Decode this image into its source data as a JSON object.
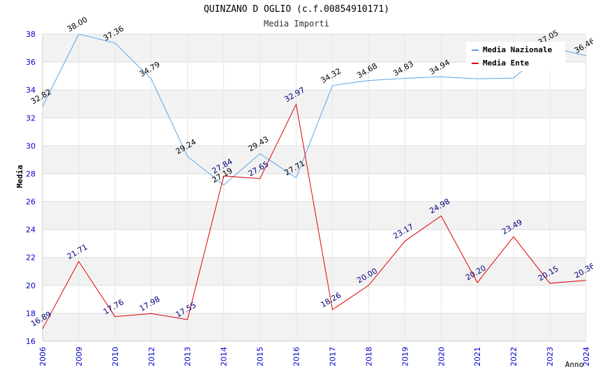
{
  "chart_data": {
    "type": "line",
    "title": "QUINZANO D OGLIO (c.f.00854910171)",
    "subtitle": "Media Importi",
    "xlabel": "Anno",
    "ylabel": "Media",
    "categories": [
      "2006",
      "2009",
      "2010",
      "2012",
      "2013",
      "2014",
      "2015",
      "2016",
      "2017",
      "2018",
      "2019",
      "2020",
      "2021",
      "2022",
      "2023",
      "2024"
    ],
    "ylim": [
      16,
      38
    ],
    "yticks": [
      16,
      18,
      20,
      22,
      24,
      26,
      28,
      30,
      32,
      34,
      36,
      38
    ],
    "grid": true,
    "legend_position": "top-right",
    "series": [
      {
        "name": "Media Nazionale",
        "color": "#5DA5E8",
        "label_color": "#000000",
        "values": [
          32.82,
          38.0,
          37.36,
          34.79,
          29.24,
          27.19,
          29.43,
          27.71,
          34.32,
          34.68,
          34.83,
          34.94,
          34.8,
          34.85,
          37.05,
          36.46
        ],
        "labels": [
          "32.82",
          "38.00",
          "37.36",
          "34.79",
          "29.24",
          "27.19",
          "29.43",
          "27.71",
          "34.32",
          "34.68",
          "34.83",
          "34.94",
          "",
          "",
          "37.05",
          "36.46"
        ]
      },
      {
        "name": "Media Ente",
        "color": "#E00000",
        "label_color": "#000080",
        "values": [
          16.89,
          21.71,
          17.76,
          17.98,
          17.55,
          27.84,
          27.65,
          32.97,
          18.26,
          20.0,
          23.17,
          24.98,
          20.2,
          23.49,
          20.15,
          20.36
        ],
        "labels": [
          "16.89",
          "21.71",
          "17.76",
          "17.98",
          "17.55",
          "27.84",
          "27.65",
          "32.97",
          "18.26",
          "20.00",
          "23.17",
          "24.98",
          "20.20",
          "23.49",
          "20.15",
          "20.36"
        ]
      }
    ]
  }
}
